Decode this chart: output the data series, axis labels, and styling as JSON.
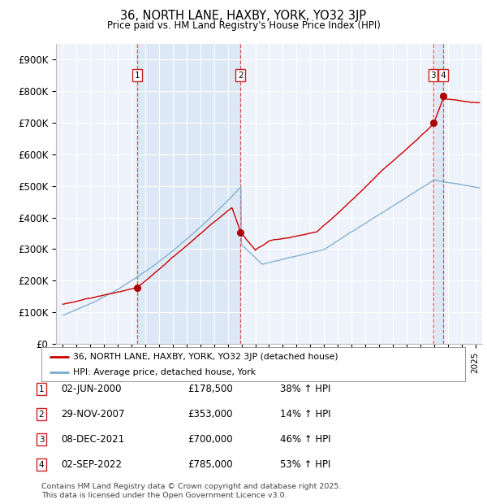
{
  "title": "36, NORTH LANE, HAXBY, YORK, YO32 3JP",
  "subtitle": "Price paid vs. HM Land Registry's House Price Index (HPI)",
  "background_color": "#ffffff",
  "plot_bg_color": "#eef2fa",
  "shade_color": "#dce8f5",
  "grid_color": "#ffffff",
  "red_line_color": "#cc0000",
  "blue_line_color": "#7aabcf",
  "sale_marker_color": "#aa0000",
  "dashed_line_color": "#dd4444",
  "legend_entries": [
    "36, NORTH LANE, HAXBY, YORK, YO32 3JP (detached house)",
    "HPI: Average price, detached house, York"
  ],
  "sales": [
    {
      "num": 1,
      "date_x": 2000.42,
      "price": 178500
    },
    {
      "num": 2,
      "date_x": 2007.91,
      "price": 353000
    },
    {
      "num": 3,
      "date_x": 2021.93,
      "price": 700000
    },
    {
      "num": 4,
      "date_x": 2022.67,
      "price": 785000
    }
  ],
  "shade_ranges": [
    [
      2000.42,
      2007.91
    ],
    [
      2021.93,
      2022.67
    ]
  ],
  "table_rows": [
    {
      "num": 1,
      "date": "02-JUN-2000",
      "price": "£178,500",
      "change": "38% ↑ HPI"
    },
    {
      "num": 2,
      "date": "29-NOV-2007",
      "price": "£353,000",
      "change": "14% ↑ HPI"
    },
    {
      "num": 3,
      "date": "08-DEC-2021",
      "price": "£700,000",
      "change": "46% ↑ HPI"
    },
    {
      "num": 4,
      "date": "02-SEP-2022",
      "price": "£785,000",
      "change": "53% ↑ HPI"
    }
  ],
  "footer": "Contains HM Land Registry data © Crown copyright and database right 2025.\nThis data is licensed under the Open Government Licence v3.0.",
  "ylim": [
    0,
    950000
  ],
  "xlim": [
    1994.5,
    2025.5
  ],
  "yticks": [
    0,
    100000,
    200000,
    300000,
    400000,
    500000,
    600000,
    700000,
    800000,
    900000
  ],
  "ytick_labels": [
    "£0",
    "£100K",
    "£200K",
    "£300K",
    "£400K",
    "£500K",
    "£600K",
    "£700K",
    "£800K",
    "£900K"
  ]
}
